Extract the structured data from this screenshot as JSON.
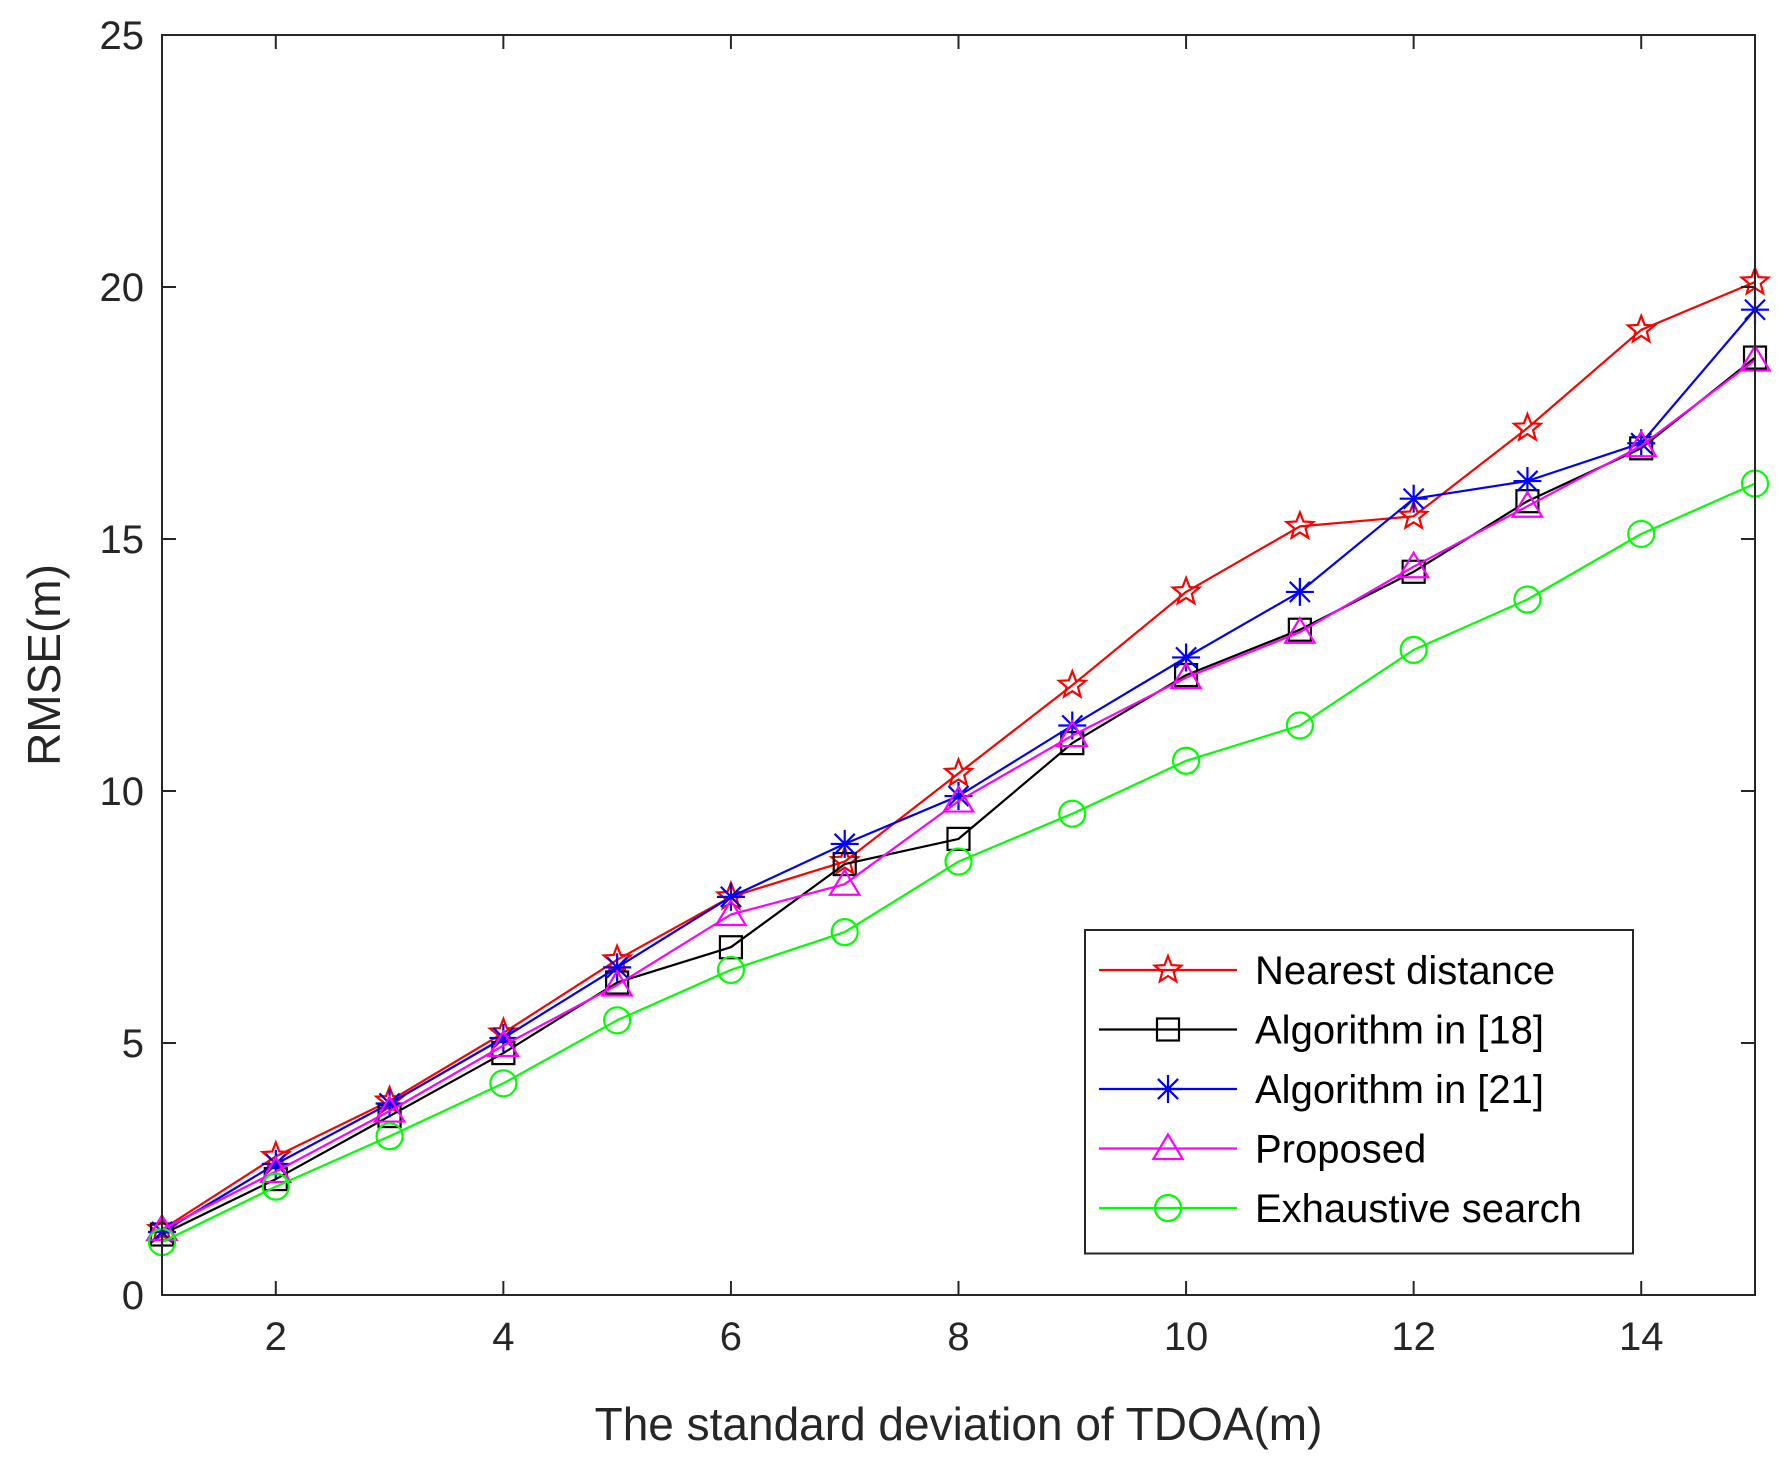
{
  "chart_data": {
    "type": "line",
    "title": "",
    "xlabel": "The standard deviation of TDOA(m)",
    "ylabel": "RMSE(m)",
    "xlim": [
      1,
      15
    ],
    "ylim": [
      0,
      25
    ],
    "xticks": [
      2,
      4,
      6,
      8,
      10,
      12,
      14
    ],
    "yticks": [
      0,
      5,
      10,
      15,
      20,
      25
    ],
    "grid": false,
    "legend_position": "bottom-right",
    "x": [
      1,
      2,
      3,
      4,
      5,
      6,
      7,
      8,
      9,
      10,
      11,
      12,
      13,
      14,
      15
    ],
    "series": [
      {
        "name": "Nearest distance",
        "color": "#ff0000",
        "marker": "star",
        "values": [
          1.3,
          2.75,
          3.85,
          5.2,
          6.65,
          7.9,
          8.6,
          10.35,
          12.1,
          13.95,
          15.25,
          15.45,
          17.2,
          19.15,
          20.1
        ]
      },
      {
        "name": "Algorithm in [18]",
        "color": "#000000",
        "marker": "square",
        "values": [
          1.2,
          2.3,
          3.55,
          4.8,
          6.2,
          6.9,
          8.55,
          9.05,
          10.95,
          12.3,
          13.2,
          14.35,
          15.75,
          16.8,
          18.6
        ]
      },
      {
        "name": "Algorithm in [21]",
        "color": "#0000ff",
        "marker": "asterisk",
        "values": [
          1.25,
          2.6,
          3.8,
          5.1,
          6.5,
          7.9,
          8.95,
          9.9,
          11.3,
          12.65,
          13.95,
          15.8,
          16.15,
          16.9,
          19.55
        ]
      },
      {
        "name": "Proposed",
        "color": "#ff00ff",
        "marker": "triangle",
        "values": [
          1.3,
          2.45,
          3.65,
          4.95,
          6.15,
          7.55,
          8.15,
          9.8,
          11.1,
          12.25,
          13.15,
          14.45,
          15.65,
          16.85,
          18.55
        ]
      },
      {
        "name": "Exhaustive search",
        "color": "#00ff00",
        "marker": "circle",
        "values": [
          1.05,
          2.15,
          3.15,
          4.2,
          5.45,
          6.45,
          7.2,
          8.6,
          9.55,
          10.6,
          11.3,
          12.8,
          13.8,
          15.1,
          16.1
        ]
      }
    ]
  }
}
